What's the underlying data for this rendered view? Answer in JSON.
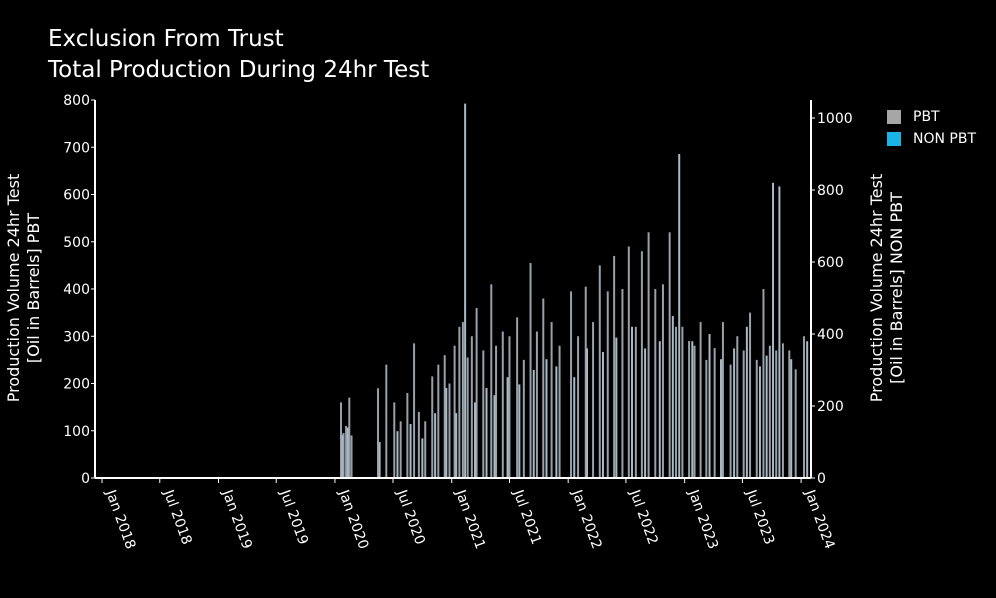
{
  "chart_data": {
    "type": "bar",
    "title_lines": [
      "Exclusion From Trust",
      "Total Production During 24hr Test"
    ],
    "y_left": {
      "label_lines": [
        "Production Volume 24hr Test",
        "[Oil in Barrels] PBT"
      ],
      "range": [
        0,
        800
      ],
      "ticks": [
        "0",
        "100",
        "200",
        "300",
        "400",
        "500",
        "600",
        "700",
        "800"
      ]
    },
    "y_right": {
      "label_lines": [
        "Production Volume 24hr Test",
        "[Oil in Barrels] NON PBT"
      ],
      "range": [
        0,
        1050
      ],
      "ticks": [
        "0",
        "200",
        "400",
        "600",
        "800",
        "1000"
      ]
    },
    "x_axis": {
      "type": "date",
      "range": [
        "2017-12-10",
        "2024-02-01"
      ],
      "ticks": [
        {
          "date": "2018-01-01",
          "label": "Jan 2018"
        },
        {
          "date": "2018-07-01",
          "label": "Jul 2018"
        },
        {
          "date": "2019-01-01",
          "label": "Jan 2019"
        },
        {
          "date": "2019-07-01",
          "label": "Jul 2019"
        },
        {
          "date": "2020-01-01",
          "label": "Jan 2020"
        },
        {
          "date": "2020-07-01",
          "label": "Jul 2020"
        },
        {
          "date": "2021-01-01",
          "label": "Jan 2021"
        },
        {
          "date": "2021-07-01",
          "label": "Jul 2021"
        },
        {
          "date": "2022-01-01",
          "label": "Jan 2022"
        },
        {
          "date": "2022-07-01",
          "label": "Jul 2022"
        },
        {
          "date": "2023-01-01",
          "label": "Jan 2023"
        },
        {
          "date": "2023-07-01",
          "label": "Jul 2023"
        },
        {
          "date": "2024-01-01",
          "label": "Jan 2024"
        }
      ]
    },
    "legend_position": "top-right",
    "series": [
      {
        "name": "PBT",
        "color": "#a6a6a6",
        "axis": "left",
        "points": [
          [
            "2020-01-20",
            160
          ],
          [
            "2020-01-28",
            95
          ],
          [
            "2020-02-05",
            110
          ],
          [
            "2020-02-15",
            170
          ],
          [
            "2020-02-22",
            90
          ],
          [
            "2020-05-15",
            190
          ],
          [
            "2020-06-10",
            240
          ],
          [
            "2020-07-05",
            160
          ],
          [
            "2020-07-25",
            120
          ],
          [
            "2020-08-15",
            180
          ],
          [
            "2020-09-05",
            285
          ],
          [
            "2020-09-20",
            140
          ],
          [
            "2020-10-10",
            120
          ],
          [
            "2020-11-01",
            215
          ],
          [
            "2020-11-20",
            240
          ],
          [
            "2020-12-10",
            260
          ],
          [
            "2020-12-25",
            200
          ],
          [
            "2021-01-10",
            280
          ],
          [
            "2021-01-25",
            320
          ],
          [
            "2021-02-05",
            330
          ],
          [
            "2021-02-20",
            255
          ],
          [
            "2021-03-05",
            300
          ],
          [
            "2021-03-20",
            360
          ],
          [
            "2021-04-10",
            270
          ],
          [
            "2021-05-05",
            410
          ],
          [
            "2021-05-20",
            280
          ],
          [
            "2021-06-10",
            310
          ],
          [
            "2021-07-01",
            300
          ],
          [
            "2021-07-25",
            340
          ],
          [
            "2021-08-15",
            250
          ],
          [
            "2021-09-05",
            455
          ],
          [
            "2021-09-25",
            310
          ],
          [
            "2021-10-15",
            380
          ],
          [
            "2021-11-10",
            330
          ],
          [
            "2021-12-05",
            280
          ],
          [
            "2022-01-10",
            395
          ],
          [
            "2022-02-01",
            300
          ],
          [
            "2022-02-25",
            405
          ],
          [
            "2022-03-20",
            330
          ],
          [
            "2022-04-10",
            450
          ],
          [
            "2022-05-05",
            395
          ],
          [
            "2022-05-25",
            470
          ],
          [
            "2022-06-20",
            400
          ],
          [
            "2022-07-10",
            490
          ],
          [
            "2022-08-01",
            320
          ],
          [
            "2022-08-20",
            480
          ],
          [
            "2022-09-10",
            520
          ],
          [
            "2022-10-01",
            400
          ],
          [
            "2022-10-25",
            410
          ],
          [
            "2022-11-15",
            520
          ],
          [
            "2022-12-05",
            320
          ],
          [
            "2022-12-25",
            320
          ],
          [
            "2023-01-15",
            290
          ],
          [
            "2023-02-01",
            280
          ],
          [
            "2023-02-20",
            330
          ],
          [
            "2023-03-10",
            250
          ],
          [
            "2023-04-05",
            275
          ],
          [
            "2023-05-01",
            330
          ],
          [
            "2023-05-25",
            240
          ],
          [
            "2023-06-15",
            300
          ],
          [
            "2023-07-05",
            270
          ],
          [
            "2023-07-25",
            350
          ],
          [
            "2023-08-15",
            250
          ],
          [
            "2023-09-05",
            400
          ],
          [
            "2023-09-25",
            280
          ],
          [
            "2023-10-15",
            270
          ],
          [
            "2023-11-05",
            285
          ],
          [
            "2023-11-25",
            270
          ],
          [
            "2023-12-15",
            230
          ],
          [
            "2024-01-10",
            300
          ]
        ]
      },
      {
        "name": "NON PBT",
        "color": "#19b3e6",
        "axis": "right",
        "points": [
          [
            "2020-01-24",
            120
          ],
          [
            "2020-02-10",
            140
          ],
          [
            "2020-05-20",
            100
          ],
          [
            "2020-07-15",
            130
          ],
          [
            "2020-08-25",
            150
          ],
          [
            "2020-10-01",
            110
          ],
          [
            "2020-11-10",
            180
          ],
          [
            "2020-12-15",
            250
          ],
          [
            "2021-01-15",
            180
          ],
          [
            "2021-02-12",
            1040
          ],
          [
            "2021-03-15",
            210
          ],
          [
            "2021-04-20",
            250
          ],
          [
            "2021-05-15",
            230
          ],
          [
            "2021-06-25",
            280
          ],
          [
            "2021-08-01",
            260
          ],
          [
            "2021-09-15",
            300
          ],
          [
            "2021-10-25",
            330
          ],
          [
            "2021-11-25",
            310
          ],
          [
            "2022-01-20",
            280
          ],
          [
            "2022-03-01",
            360
          ],
          [
            "2022-04-20",
            350
          ],
          [
            "2022-06-01",
            390
          ],
          [
            "2022-07-20",
            420
          ],
          [
            "2022-08-30",
            360
          ],
          [
            "2022-10-15",
            380
          ],
          [
            "2022-11-25",
            450
          ],
          [
            "2022-12-15",
            900
          ],
          [
            "2023-01-25",
            380
          ],
          [
            "2023-03-20",
            400
          ],
          [
            "2023-04-25",
            330
          ],
          [
            "2023-06-05",
            360
          ],
          [
            "2023-07-15",
            420
          ],
          [
            "2023-08-25",
            310
          ],
          [
            "2023-09-15",
            340
          ],
          [
            "2023-10-05",
            820
          ],
          [
            "2023-10-25",
            810
          ],
          [
            "2023-12-01",
            330
          ],
          [
            "2024-01-20",
            380
          ]
        ]
      }
    ]
  }
}
